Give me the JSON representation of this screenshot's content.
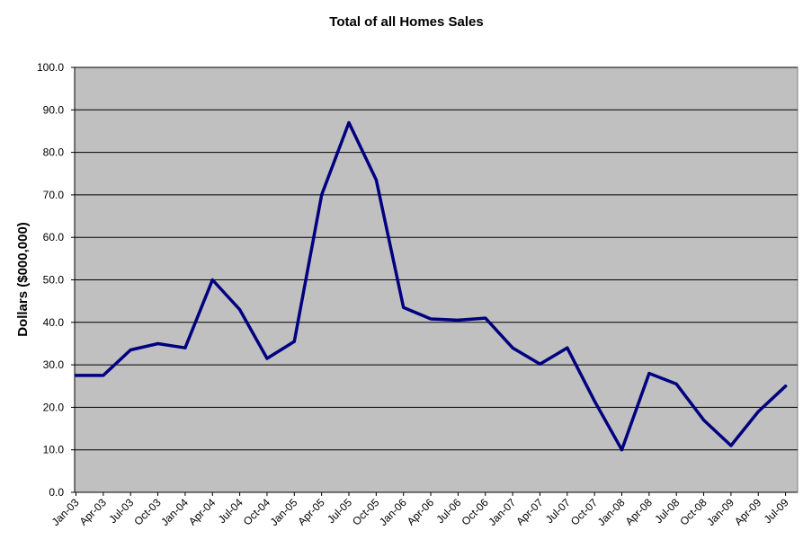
{
  "chart_data": {
    "type": "line",
    "title": "Total of all Homes Sales",
    "xlabel": "",
    "ylabel": "Dollars ($000,000)",
    "ylim": [
      0,
      100
    ],
    "y_ticks": [
      "0.0",
      "10.0",
      "20.0",
      "30.0",
      "40.0",
      "50.0",
      "60.0",
      "70.0",
      "80.0",
      "90.0",
      "100.0"
    ],
    "grid": "horizontal",
    "legend": "none",
    "categories": [
      "Jan-03",
      "Apr-03",
      "Jul-03",
      "Oct-03",
      "Jan-04",
      "Apr-04",
      "Jul-04",
      "Oct-04",
      "Jan-05",
      "Apr-05",
      "Jul-05",
      "Oct-05",
      "Jan-06",
      "Apr-06",
      "Jul-06",
      "Oct-06",
      "Jan-07",
      "Apr-07",
      "Jul-07",
      "Oct-07",
      "Jan-08",
      "Apr-08",
      "Jul-08",
      "Oct-08",
      "Jan-09",
      "Apr-09",
      "Jul-09"
    ],
    "series": [
      {
        "values": [
          27.5,
          27.5,
          33.5,
          35.0,
          34.0,
          50.0,
          43.0,
          31.5,
          35.5,
          70.0,
          87.0,
          73.5,
          43.5,
          40.8,
          40.5,
          41.0,
          34.0,
          30.2,
          34.0,
          21.5,
          10.0,
          28.0,
          25.5,
          17.0,
          11.0,
          19.0,
          25.0
        ]
      }
    ],
    "colors": {
      "plot_background": "#C0C0C0",
      "line": "#000080",
      "gridline": "#000000"
    }
  }
}
